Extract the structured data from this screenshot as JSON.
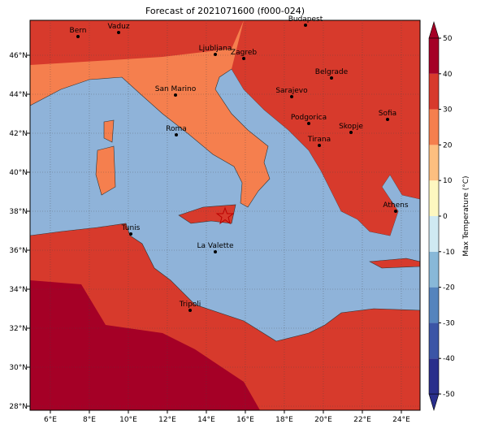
{
  "title": "Forecast of 2021071600 (f000-024)",
  "map": {
    "lon_ticks": [
      {
        "value": 6,
        "label": "6°E"
      },
      {
        "value": 8,
        "label": "8°E"
      },
      {
        "value": 10,
        "label": "10°E"
      },
      {
        "value": 12,
        "label": "12°E"
      },
      {
        "value": 14,
        "label": "14°E"
      },
      {
        "value": 16,
        "label": "16°E"
      },
      {
        "value": 18,
        "label": "18°E"
      },
      {
        "value": 20,
        "label": "20°E"
      },
      {
        "value": 22,
        "label": "22°E"
      },
      {
        "value": 24,
        "label": "24°E"
      }
    ],
    "lat_ticks": [
      {
        "value": 28,
        "label": "28°N"
      },
      {
        "value": 30,
        "label": "30°N"
      },
      {
        "value": 32,
        "label": "32°N"
      },
      {
        "value": 34,
        "label": "34°N"
      },
      {
        "value": 36,
        "label": "36°N"
      },
      {
        "value": 38,
        "label": "38°N"
      },
      {
        "value": 40,
        "label": "40°N"
      },
      {
        "value": 42,
        "label": "42°N"
      },
      {
        "value": 44,
        "label": "44°N"
      },
      {
        "value": 46,
        "label": "46°N"
      }
    ],
    "cities": [
      "Bern",
      "Vaduz",
      "Budapest",
      "Ljubljana",
      "Zagreb",
      "Belgrade",
      "San Marino",
      "Sarajevo",
      "Sofia",
      "Podgorica",
      "Skopje",
      "Roma",
      "Tirana",
      "Athens",
      "Tunis",
      "La Valette",
      "Tripoli"
    ]
  },
  "colorbar": {
    "label": "Max Temperature (°C)",
    "lim": [
      -50,
      50
    ],
    "ticks": [
      -50,
      -40,
      -30,
      -20,
      -10,
      0,
      10,
      20,
      30,
      40,
      50
    ],
    "colors": [
      "#2a2f8c",
      "#3b55a6",
      "#5584bd",
      "#88b8d8",
      "#cfe9f2",
      "#fdf7c0",
      "#fdbf80",
      "#f57f4e",
      "#d73a2c",
      "#a50026"
    ]
  }
}
